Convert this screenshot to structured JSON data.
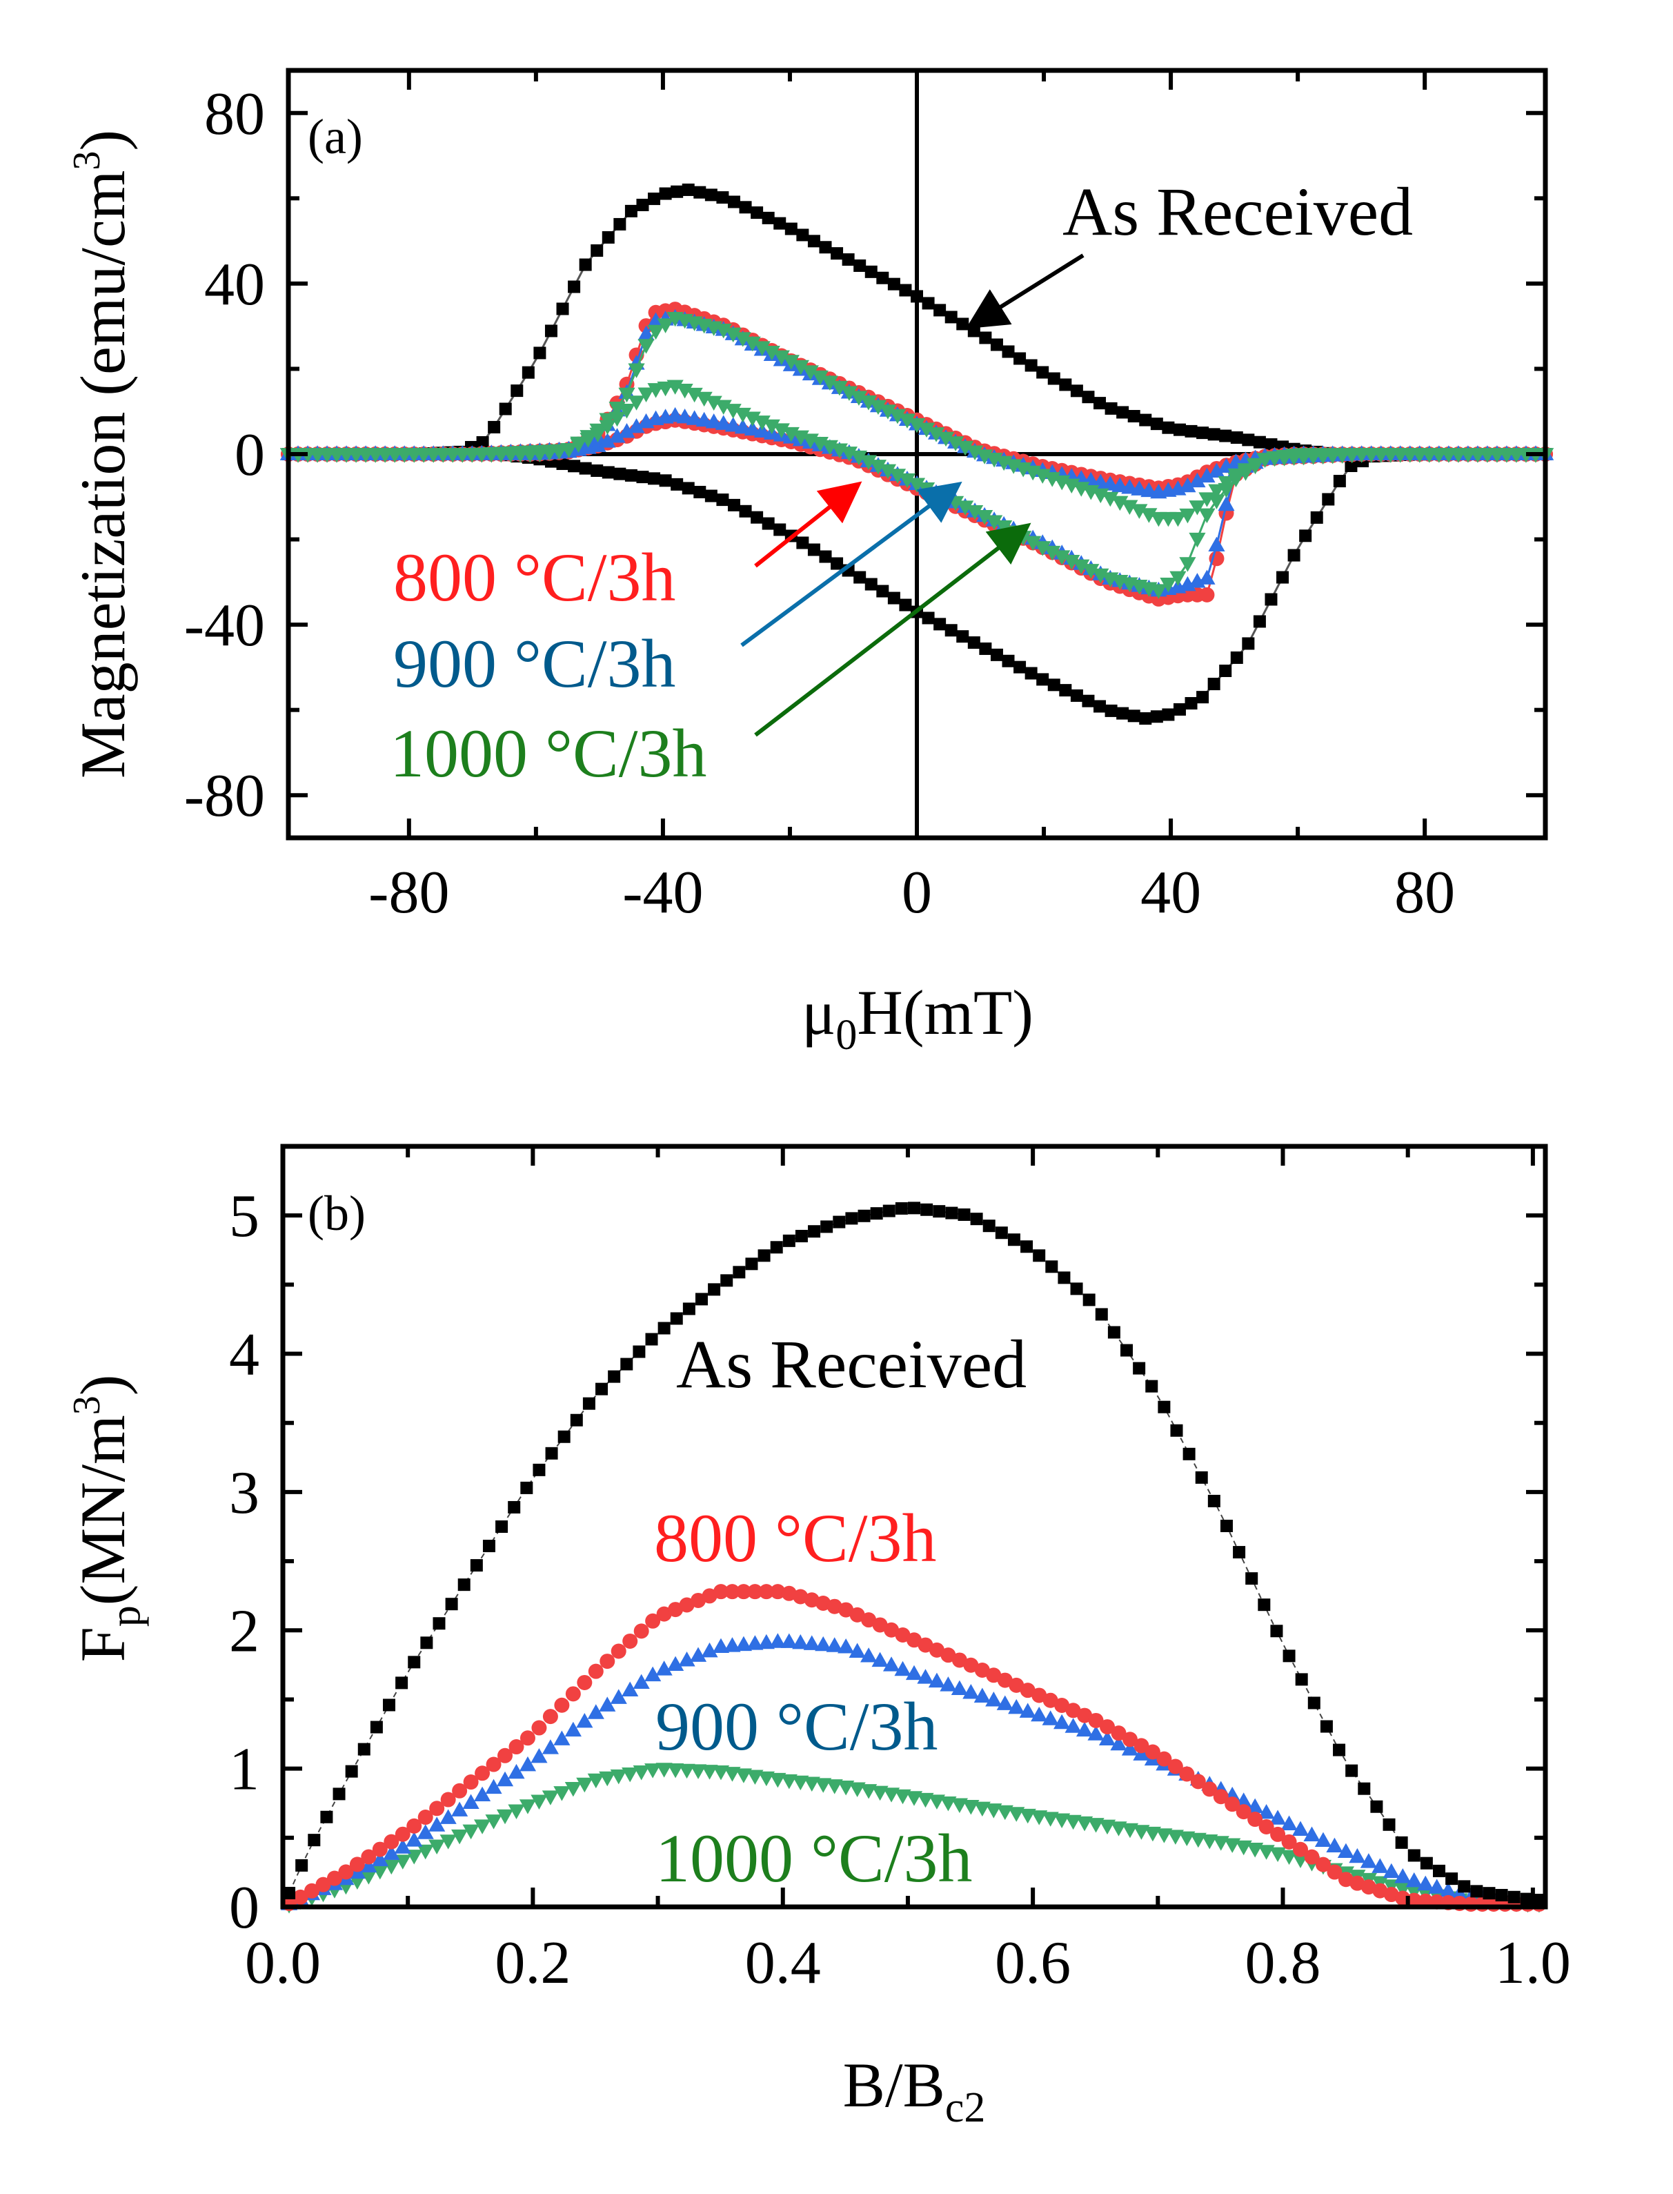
{
  "colors": {
    "as_received": "#000000",
    "c800": "#f14141",
    "c900": "#2f6fe4",
    "c1000": "#3cab6a",
    "label800": "#ff1f1f",
    "label900": "#005a8c",
    "label1000": "#1d7f1d",
    "arrow800": "#ff0000",
    "arrow900": "#0a6faa",
    "arrow1000": "#0b6b0b"
  },
  "chart_data": [
    {
      "panel": "(a)",
      "type": "scatter",
      "xlabel": "μ0H(mT)",
      "ylabel": "Magnetization (emu/cm3)",
      "xlim": [
        -99,
        99
      ],
      "ylim": [
        -90,
        90
      ],
      "xticks": [
        "-80",
        "-40",
        "0",
        "40",
        "80"
      ],
      "yticks": [
        "80",
        "40",
        "0",
        "-40",
        "-80"
      ],
      "series": [
        {
          "name": "As Received",
          "marker": "square",
          "upper_x": [
            -99,
            -80,
            -72,
            -68,
            -60,
            -52,
            -45,
            -40,
            -36,
            -30,
            -20,
            -10,
            0,
            10,
            20,
            30,
            40,
            50,
            60,
            66,
            70,
            80,
            99
          ],
          "upper_y": [
            0,
            0,
            0.5,
            3,
            22,
            45,
            57,
            61,
            62,
            60,
            53,
            45,
            37,
            28,
            19,
            11,
            6,
            4,
            1,
            0,
            0,
            0,
            0
          ],
          "lower_x": [
            -99,
            -80,
            -70,
            -66,
            -60,
            -50,
            -40,
            -30,
            -20,
            -10,
            0,
            10,
            20,
            30,
            36,
            40,
            45,
            52,
            60,
            68,
            72,
            80,
            99
          ],
          "lower_y": [
            0,
            0,
            0,
            0,
            -1,
            -4,
            -6,
            -11,
            -19,
            -28,
            -37,
            -45,
            -53,
            -60,
            -62,
            -61,
            -57,
            -45,
            -22,
            -3,
            -0.5,
            0,
            0
          ]
        },
        {
          "name": "800 °C/3h",
          "marker": "circle",
          "upper_x": [
            -99,
            -70,
            -55,
            -50,
            -46,
            -42,
            -38,
            -30,
            -20,
            -10,
            0,
            10,
            20,
            30,
            38,
            42,
            46,
            50,
            55,
            60,
            70,
            99
          ],
          "upper_y": [
            0,
            0,
            1,
            5,
            15,
            33,
            34,
            30,
            22,
            15,
            8,
            1,
            -3,
            -6,
            -8,
            -7,
            -4,
            -2,
            -0.5,
            0,
            0,
            0
          ],
          "lower_x": [
            -99,
            -70,
            -60,
            -55,
            -50,
            -46,
            -42,
            -38,
            -30,
            -20,
            -10,
            0,
            10,
            20,
            30,
            38,
            42,
            46,
            50,
            55,
            70,
            99
          ],
          "lower_y": [
            0,
            0,
            0,
            0.5,
            2,
            4,
            7,
            8,
            6,
            3,
            -1,
            -8,
            -15,
            -22,
            -30,
            -34,
            -33,
            -33,
            -5,
            -1,
            0,
            0
          ]
        },
        {
          "name": "900 °C/3h",
          "marker": "triangle-up",
          "upper_x": [
            -99,
            -70,
            -55,
            -50,
            -46,
            -42,
            -38,
            -30,
            -20,
            -10,
            0,
            10,
            20,
            30,
            38,
            42,
            46,
            50,
            55,
            60,
            70,
            99
          ],
          "upper_y": [
            0,
            0,
            1,
            4,
            13,
            31,
            32,
            29,
            21,
            14,
            7,
            0,
            -4,
            -7,
            -9,
            -8,
            -5,
            -2,
            -0.5,
            0,
            0,
            0
          ],
          "lower_x": [
            -99,
            -70,
            -60,
            -55,
            -50,
            -46,
            -42,
            -38,
            -30,
            -20,
            -10,
            0,
            10,
            20,
            30,
            38,
            42,
            46,
            50,
            55,
            70,
            99
          ],
          "lower_y": [
            0,
            0,
            0,
            0.5,
            2,
            5,
            8,
            9,
            7,
            4,
            0,
            -7,
            -14,
            -21,
            -29,
            -32,
            -31,
            -29,
            -4,
            -1,
            0,
            0
          ]
        },
        {
          "name": "1000 °C/3h",
          "marker": "triangle-down",
          "upper_x": [
            -99,
            -70,
            -55,
            -50,
            -46,
            -42,
            -38,
            -30,
            -20,
            -10,
            0,
            10,
            20,
            30,
            38,
            42,
            46,
            50,
            55,
            60,
            70,
            99
          ],
          "upper_y": [
            0,
            0,
            1,
            6,
            13,
            28,
            32,
            29,
            22,
            14,
            7,
            0,
            -5,
            -10,
            -15,
            -15,
            -10,
            -5,
            -1,
            0,
            0,
            0
          ],
          "lower_x": [
            -99,
            -70,
            -60,
            -55,
            -50,
            -46,
            -42,
            -38,
            -30,
            -20,
            -10,
            0,
            10,
            20,
            30,
            38,
            42,
            46,
            50,
            55,
            70,
            99
          ],
          "lower_y": [
            0,
            0,
            0,
            1,
            5,
            10,
            15,
            16,
            11,
            5,
            0,
            -7,
            -14,
            -22,
            -29,
            -32,
            -28,
            -13,
            -6,
            -1,
            0,
            0
          ]
        }
      ]
    },
    {
      "panel": "(b)",
      "type": "scatter",
      "xlabel": "B/Bc2",
      "ylabel": "Fp(MN/m3)",
      "xlim": [
        0,
        1.01
      ],
      "ylim": [
        0,
        5.5
      ],
      "xticks": [
        "0.0",
        "0.2",
        "0.4",
        "0.6",
        "0.8",
        "1.0"
      ],
      "yticks": [
        "5",
        "4",
        "3",
        "2",
        "1",
        "0"
      ],
      "series": [
        {
          "name": "As Received",
          "marker": "square",
          "x": [
            0,
            0.02,
            0.05,
            0.1,
            0.15,
            0.2,
            0.25,
            0.3,
            0.35,
            0.4,
            0.45,
            0.5,
            0.55,
            0.6,
            0.65,
            0.7,
            0.75,
            0.8,
            0.85,
            0.9,
            0.95,
            1.0
          ],
          "y": [
            0,
            0.4,
            0.9,
            1.7,
            2.4,
            3.1,
            3.7,
            4.15,
            4.5,
            4.8,
            4.97,
            5.06,
            5.0,
            4.75,
            4.35,
            3.7,
            2.85,
            1.9,
            1.05,
            0.4,
            0.12,
            0.05
          ]
        },
        {
          "name": "800 °C/3h",
          "marker": "circle",
          "x": [
            0,
            0.05,
            0.1,
            0.15,
            0.2,
            0.25,
            0.3,
            0.35,
            0.4,
            0.45,
            0.5,
            0.55,
            0.6,
            0.65,
            0.7,
            0.75,
            0.8,
            0.85,
            0.9,
            0.95,
            1.0
          ],
          "y": [
            0,
            0.25,
            0.55,
            0.9,
            1.25,
            1.7,
            2.1,
            2.28,
            2.28,
            2.15,
            1.95,
            1.75,
            1.55,
            1.35,
            1.1,
            0.8,
            0.5,
            0.2,
            0.05,
            0.02,
            0.02
          ]
        },
        {
          "name": "900 °C/3h",
          "marker": "triangle-up",
          "x": [
            0,
            0.05,
            0.1,
            0.15,
            0.2,
            0.25,
            0.3,
            0.35,
            0.4,
            0.45,
            0.5,
            0.55,
            0.6,
            0.65,
            0.7,
            0.75,
            0.8,
            0.85,
            0.9,
            0.95,
            1.0
          ],
          "y": [
            0,
            0.2,
            0.45,
            0.75,
            1.05,
            1.4,
            1.7,
            1.88,
            1.92,
            1.88,
            1.7,
            1.55,
            1.4,
            1.25,
            1.05,
            0.85,
            0.62,
            0.4,
            0.2,
            0.07,
            0.03
          ]
        },
        {
          "name": "1000 °C/3h",
          "marker": "triangle-down",
          "x": [
            0,
            0.05,
            0.1,
            0.15,
            0.2,
            0.25,
            0.3,
            0.35,
            0.4,
            0.45,
            0.5,
            0.55,
            0.6,
            0.65,
            0.7,
            0.75,
            0.8,
            0.85,
            0.9,
            0.95,
            1.0
          ],
          "y": [
            0,
            0.15,
            0.35,
            0.55,
            0.75,
            0.92,
            1.0,
            0.98,
            0.92,
            0.87,
            0.8,
            0.73,
            0.66,
            0.6,
            0.53,
            0.47,
            0.38,
            0.25,
            0.12,
            0.04,
            0.02
          ]
        }
      ]
    }
  ],
  "annotations_a": {
    "as_received": "As Received",
    "l800": "800 °C/3h",
    "l900": "900 °C/3h",
    "l1000": "1000 °C/3h"
  },
  "annotations_b": {
    "as_received": "As Received",
    "l800": "800 °C/3h",
    "l900": "900 °C/3h",
    "l1000": "1000 °C/3h"
  },
  "axis_text": {
    "a_ylabel_main": "Magnetization (emu/cm",
    "a_ylabel_sup": "3",
    "a_ylabel_end": ")",
    "a_xlabel_mu": "μ",
    "a_xlabel_sub": "0",
    "a_xlabel_end": "H(mT)",
    "b_ylabel_F": "F",
    "b_ylabel_sub": "p",
    "b_ylabel_mid": "(MN/m",
    "b_ylabel_sup": "3",
    "b_ylabel_end": ")",
    "b_xlabel_main": "B/B",
    "b_xlabel_sub": "c2"
  }
}
